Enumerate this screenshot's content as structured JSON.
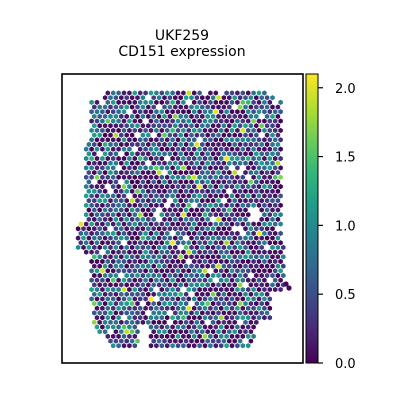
{
  "chart_data": {
    "type": "scatter",
    "subtype": "spatial-hexbin",
    "title_line1": "UKF259",
    "title_line2": "CD151 expression",
    "xlabel": "",
    "ylabel": "",
    "colorbar": {
      "colormap": "viridis",
      "range": [
        0.0,
        2.1
      ],
      "ticks": [
        0.0,
        0.5,
        1.0,
        1.5,
        2.0
      ],
      "tick_labels": [
        "0.0",
        "0.5",
        "1.0",
        "1.5",
        "2.0"
      ]
    },
    "grid": false,
    "legend": "none"
  }
}
